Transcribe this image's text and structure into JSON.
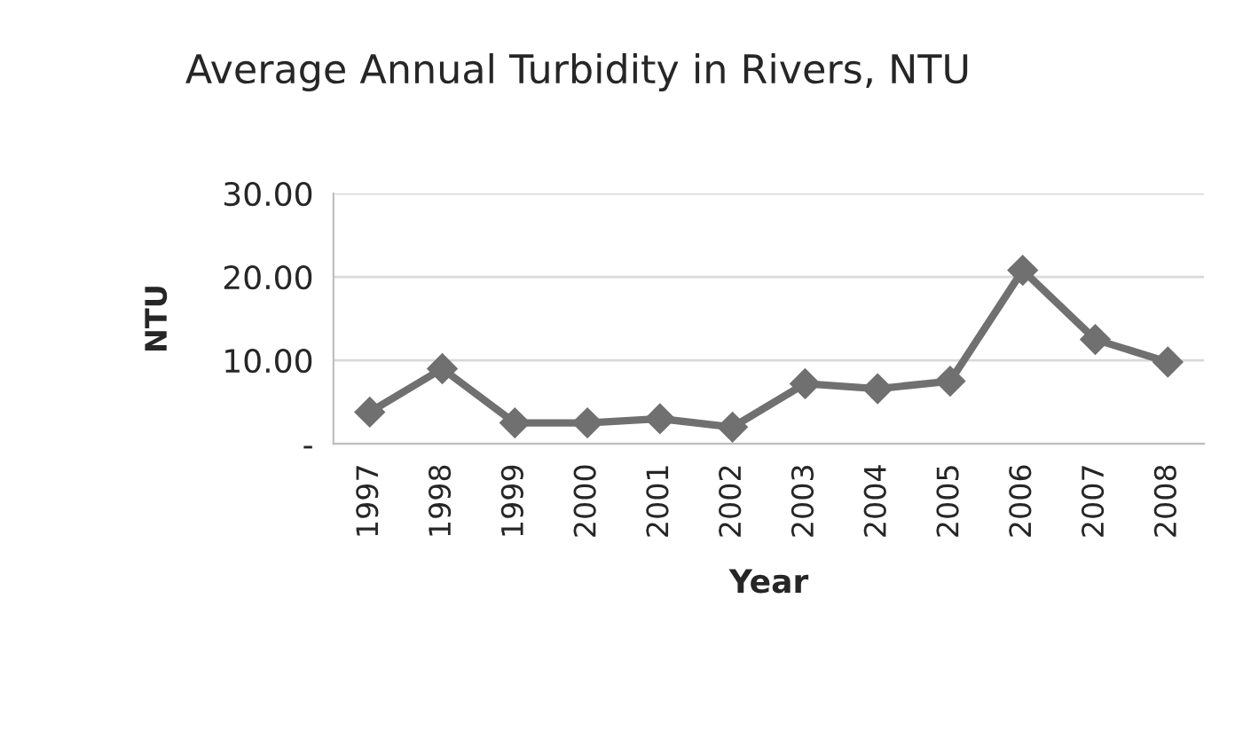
{
  "chart_data": {
    "type": "line",
    "title": "Average Annual Turbidity in Rivers, NTU",
    "xlabel": "Year",
    "ylabel": "NTU",
    "categories": [
      "1997",
      "1998",
      "1999",
      "2000",
      "2001",
      "2002",
      "2003",
      "2004",
      "2005",
      "2006",
      "2007",
      "2008"
    ],
    "series": [
      {
        "color": "#707070",
        "values": [
          3.8,
          9.0,
          2.5,
          2.5,
          3.0,
          2.0,
          7.2,
          6.6,
          7.5,
          20.8,
          12.5,
          9.8
        ]
      }
    ],
    "ylim": [
      0,
      30
    ],
    "yticks": [
      {
        "value": 0,
        "label": "-"
      },
      {
        "value": 10,
        "label": "10.00"
      },
      {
        "value": 20,
        "label": "20.00"
      },
      {
        "value": 30,
        "label": "30.00"
      }
    ],
    "grid": "y",
    "marker": "diamond",
    "line_style": "solid",
    "legend": false
  }
}
